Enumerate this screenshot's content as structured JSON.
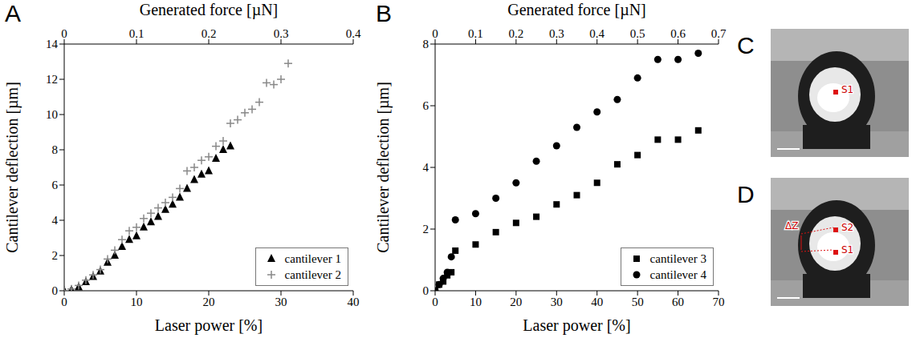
{
  "chart_data": [
    {
      "panel": "A",
      "type": "scatter",
      "x_label": "Laser power [%]",
      "x2_label": "Generated force [µN]",
      "y_label": "Cantilever deflection [µm]",
      "xlim": [
        0,
        40
      ],
      "xticks": [
        0,
        10,
        20,
        30,
        40
      ],
      "x2lim": [
        0,
        0.4
      ],
      "x2ticks": [
        0,
        0.1,
        0.2,
        0.3,
        0.4
      ],
      "ylim": [
        0,
        14
      ],
      "yticks": [
        0,
        2,
        4,
        6,
        8,
        10,
        12,
        14
      ],
      "legend": "lower right",
      "series": [
        {
          "name": "cantilever 1",
          "color": "#000000",
          "marker": "triangle",
          "x": [
            0,
            1,
            2,
            3,
            4,
            5,
            6,
            7,
            8,
            9,
            10,
            11,
            12,
            13,
            14,
            15,
            16,
            17,
            18,
            19,
            20,
            21,
            22,
            23
          ],
          "values": [
            0,
            0.05,
            0.2,
            0.5,
            0.8,
            1.1,
            1.6,
            2.0,
            2.5,
            2.9,
            3.1,
            3.6,
            3.9,
            4.2,
            4.6,
            4.9,
            5.3,
            5.8,
            6.3,
            6.6,
            6.8,
            7.5,
            8.0,
            8.2
          ]
        },
        {
          "name": "cantilever 2",
          "color": "#888888",
          "marker": "plus",
          "x": [
            0,
            1,
            2,
            3,
            4,
            5,
            6,
            7,
            8,
            9,
            10,
            11,
            12,
            13,
            14,
            15,
            16,
            17,
            18,
            19,
            20,
            21,
            22,
            23,
            24,
            25,
            26,
            27,
            28,
            29,
            30,
            31
          ],
          "values": [
            0,
            0.1,
            0.3,
            0.6,
            0.9,
            1.2,
            1.8,
            2.3,
            2.9,
            3.4,
            3.6,
            4.1,
            4.4,
            4.7,
            5.0,
            5.3,
            5.8,
            6.8,
            7.0,
            7.4,
            7.6,
            8.2,
            8.5,
            9.5,
            9.7,
            10.1,
            10.3,
            10.7,
            11.8,
            11.7,
            12.0,
            12.9
          ]
        }
      ]
    },
    {
      "panel": "B",
      "type": "scatter",
      "x_label": "Laser power [%]",
      "x2_label": "Generated force [µN]",
      "y_label": "Cantilever deflection [µm]",
      "xlim": [
        0,
        70
      ],
      "xticks": [
        0,
        10,
        20,
        30,
        40,
        50,
        60,
        70
      ],
      "x2lim": [
        0,
        0.7
      ],
      "x2ticks": [
        0,
        0.1,
        0.2,
        0.3,
        0.4,
        0.5,
        0.6,
        0.7
      ],
      "ylim": [
        0,
        8
      ],
      "yticks": [
        0,
        2,
        4,
        6,
        8
      ],
      "legend": "lower right",
      "series": [
        {
          "name": "cantilever 3",
          "color": "#000000",
          "marker": "square",
          "x": [
            0,
            1,
            2,
            3,
            4,
            5,
            10,
            15,
            20,
            25,
            30,
            35,
            40,
            45,
            50,
            55,
            60,
            65
          ],
          "values": [
            0,
            0.2,
            0.3,
            0.5,
            0.6,
            1.3,
            1.5,
            1.9,
            2.2,
            2.4,
            2.8,
            3.1,
            3.5,
            4.1,
            4.4,
            4.9,
            4.9,
            5.2
          ]
        },
        {
          "name": "cantilever 4",
          "color": "#000000",
          "marker": "circle",
          "x": [
            0,
            1,
            2,
            3,
            4,
            5,
            10,
            15,
            20,
            25,
            30,
            35,
            40,
            45,
            50,
            55,
            60,
            65
          ],
          "values": [
            0,
            0.2,
            0.4,
            0.6,
            1.1,
            2.3,
            2.5,
            3.0,
            3.5,
            4.2,
            4.7,
            5.3,
            5.8,
            6.2,
            6.9,
            7.5,
            7.5,
            7.7
          ]
        }
      ]
    }
  ],
  "images": [
    {
      "panel": "C",
      "labels": [
        "S1"
      ]
    },
    {
      "panel": "D",
      "labels": [
        "ΔZ",
        "S2",
        "S1"
      ]
    }
  ]
}
